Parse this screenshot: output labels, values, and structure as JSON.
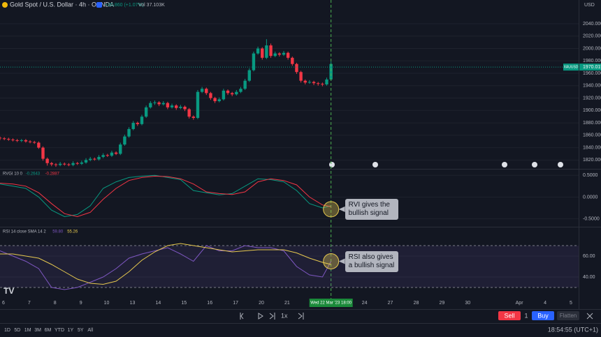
{
  "header": {
    "symbol": "Gold Spot / U.S. Dollar · 4h · OANDA",
    "change": "+20.860 (+1.07%)",
    "volume": "Vol 37.103K",
    "currency": "USD"
  },
  "chart_data": [
    {
      "type": "candlestick",
      "ticker": "XAUUSD",
      "last_price": 1970.015,
      "up_color": "#089981",
      "down_color": "#f23645",
      "open": [
        1856,
        1855,
        1854,
        1853,
        1852,
        1851,
        1852,
        1850,
        1849,
        1848,
        1840,
        1822,
        1815,
        1813,
        1812,
        1814,
        1813,
        1812,
        1815,
        1814,
        1816,
        1820,
        1822,
        1821,
        1825,
        1828,
        1827,
        1832,
        1830,
        1845,
        1858,
        1870,
        1880,
        1878,
        1890,
        1905,
        1912,
        1913,
        1910,
        1912,
        1905,
        1908,
        1904,
        1906,
        1902,
        1890,
        1888,
        1930,
        1935,
        1928,
        1920,
        1915,
        1918,
        1932,
        1928,
        1926,
        1930,
        1935,
        1948,
        1965,
        1992,
        2000,
        1985,
        2005,
        1988,
        1992,
        1990,
        1993,
        1985,
        1975,
        1962,
        1948,
        1945,
        1946,
        1944,
        1943,
        1942,
        1950
      ],
      "high": [
        1858,
        1857,
        1856,
        1855,
        1854,
        1854,
        1854,
        1852,
        1851,
        1850,
        1842,
        1824,
        1817,
        1815,
        1817,
        1816,
        1815,
        1818,
        1817,
        1819,
        1823,
        1825,
        1824,
        1828,
        1831,
        1830,
        1835,
        1834,
        1848,
        1861,
        1873,
        1883,
        1882,
        1893,
        1908,
        1915,
        1916,
        1915,
        1915,
        1914,
        1911,
        1910,
        1909,
        1908,
        1904,
        1892,
        1933,
        1938,
        1937,
        1930,
        1922,
        1921,
        1935,
        1934,
        1930,
        1933,
        1938,
        1951,
        1968,
        1995,
        2003,
        2002,
        2015,
        2008,
        1995,
        1994,
        1996,
        1995,
        1987,
        1977,
        1964,
        1950,
        1949,
        1948,
        1946,
        1945,
        1953,
        1979
      ],
      "low": [
        1852,
        1852,
        1851,
        1850,
        1849,
        1849,
        1848,
        1847,
        1846,
        1838,
        1819,
        1811,
        1810,
        1809,
        1810,
        1811,
        1810,
        1810,
        1812,
        1812,
        1814,
        1818,
        1819,
        1819,
        1823,
        1825,
        1825,
        1828,
        1828,
        1843,
        1856,
        1868,
        1875,
        1876,
        1888,
        1903,
        1909,
        1907,
        1908,
        1902,
        1903,
        1901,
        1902,
        1899,
        1887,
        1885,
        1886,
        1928,
        1925,
        1917,
        1912,
        1913,
        1916,
        1925,
        1923,
        1924,
        1928,
        1933,
        1946,
        1963,
        1990,
        1982,
        1983,
        1985,
        1986,
        1987,
        1988,
        1982,
        1972,
        1959,
        1945,
        1942,
        1943,
        1941,
        1940,
        1939,
        1940,
        1948
      ],
      "close": [
        1855,
        1854,
        1853,
        1852,
        1851,
        1852,
        1850,
        1849,
        1848,
        1840,
        1822,
        1815,
        1813,
        1812,
        1814,
        1813,
        1812,
        1815,
        1814,
        1816,
        1820,
        1822,
        1821,
        1825,
        1828,
        1827,
        1832,
        1830,
        1845,
        1858,
        1870,
        1880,
        1878,
        1890,
        1905,
        1912,
        1913,
        1910,
        1912,
        1905,
        1908,
        1904,
        1906,
        1902,
        1890,
        1888,
        1930,
        1935,
        1928,
        1920,
        1915,
        1918,
        1932,
        1928,
        1926,
        1930,
        1935,
        1948,
        1965,
        1992,
        2000,
        1985,
        2005,
        1988,
        1992,
        1990,
        1993,
        1985,
        1975,
        1962,
        1948,
        1945,
        1946,
        1944,
        1943,
        1942,
        1950,
        1975
      ],
      "xlim": [
        0,
        134.6
      ],
      "ylim": [
        1808,
        2058
      ],
      "yticks": [
        {
          "value": 1820,
          "label": "1820.000"
        },
        {
          "value": 1840,
          "label": "1840.000"
        },
        {
          "value": 1860,
          "label": "1860.000"
        },
        {
          "value": 1880,
          "label": "1880.000"
        },
        {
          "value": 1900,
          "label": "1900.000"
        },
        {
          "value": 1920,
          "label": "1920.000"
        },
        {
          "value": 1940,
          "label": "1940.000"
        },
        {
          "value": 1960,
          "label": "1960.000"
        },
        {
          "value": 1980,
          "label": "1980.000"
        },
        {
          "value": 2000,
          "label": "2000.000"
        },
        {
          "value": 2020,
          "label": "2020.000"
        },
        {
          "value": 2040,
          "label": "2040.000"
        }
      ],
      "xticks": [
        {
          "value": 0.8,
          "label": "6"
        },
        {
          "value": 6.8,
          "label": "7"
        },
        {
          "value": 12.8,
          "label": "8"
        },
        {
          "value": 18.8,
          "label": "9"
        },
        {
          "value": 24.8,
          "label": "10"
        },
        {
          "value": 30.8,
          "label": "13"
        },
        {
          "value": 36.8,
          "label": "14"
        },
        {
          "value": 42.8,
          "label": "15"
        },
        {
          "value": 48.8,
          "label": "16"
        },
        {
          "value": 54.8,
          "label": "17"
        },
        {
          "value": 60.8,
          "label": "20"
        },
        {
          "value": 66.8,
          "label": "21"
        },
        {
          "value": 84.8,
          "label": "24"
        },
        {
          "value": 90.8,
          "label": "27"
        },
        {
          "value": 96.8,
          "label": "28"
        },
        {
          "value": 102.8,
          "label": "29"
        },
        {
          "value": 108.8,
          "label": "30"
        },
        {
          "value": 120.8,
          "label": "Apr"
        },
        {
          "value": 126.8,
          "label": "4"
        },
        {
          "value": 132.8,
          "label": "5"
        }
      ],
      "crosshair": {
        "value": 77,
        "label": "Wed 22 Mar '23  18:00"
      }
    },
    {
      "type": "line",
      "title": "RVGI 10 0",
      "legend": [
        "-0.2643",
        "-0.2887"
      ],
      "x": [
        0,
        3,
        6,
        9,
        12,
        15,
        18,
        21,
        24,
        27,
        30,
        33,
        36,
        39,
        42,
        45,
        48,
        51,
        54,
        57,
        60,
        63,
        66,
        69,
        72,
        75,
        77
      ],
      "series": [
        {
          "color": "#089981",
          "values": [
            0.3,
            0.25,
            0.2,
            0.0,
            -0.3,
            -0.45,
            -0.4,
            -0.2,
            0.2,
            0.35,
            0.45,
            0.48,
            0.5,
            0.45,
            0.4,
            0.15,
            0.1,
            0.05,
            0.08,
            0.25,
            0.42,
            0.4,
            0.35,
            0.15,
            -0.15,
            -0.25,
            -0.2
          ]
        },
        {
          "color": "#f23645",
          "values": [
            0.32,
            0.3,
            0.25,
            0.1,
            -0.15,
            -0.38,
            -0.45,
            -0.35,
            -0.05,
            0.2,
            0.38,
            0.45,
            0.48,
            0.47,
            0.42,
            0.3,
            0.12,
            0.08,
            0.06,
            0.12,
            0.35,
            0.42,
            0.38,
            0.28,
            0.0,
            -0.18,
            -0.22
          ]
        }
      ],
      "xlim": [
        0,
        134.6
      ],
      "ylim": [
        -0.65,
        0.6
      ],
      "yticks": [
        {
          "value": 0.5,
          "label": "0.5000"
        },
        {
          "value": 0,
          "label": "0.0000"
        },
        {
          "value": -0.5,
          "label": "-0.5000"
        }
      ],
      "annotation": "RVI gives the bullish signal",
      "annotation_value": -0.28
    },
    {
      "type": "line",
      "title": "RSI 14 close SMA 14 2",
      "legend": [
        "59.80",
        "55.26"
      ],
      "x": [
        0,
        3,
        6,
        9,
        12,
        15,
        18,
        21,
        24,
        27,
        30,
        33,
        36,
        39,
        42,
        45,
        48,
        51,
        54,
        57,
        60,
        63,
        66,
        69,
        72,
        75,
        77
      ],
      "series": [
        {
          "color": "#7e57c2",
          "values": [
            65,
            60,
            55,
            48,
            30,
            28,
            30,
            35,
            40,
            48,
            58,
            62,
            65,
            68,
            62,
            55,
            70,
            65,
            65,
            70,
            68,
            68,
            65,
            50,
            42,
            40,
            55
          ]
        },
        {
          "color": "#e6c84f",
          "values": [
            62,
            62,
            60,
            58,
            52,
            45,
            38,
            34,
            33,
            36,
            45,
            56,
            64,
            70,
            72,
            70,
            68,
            66,
            64,
            65,
            66,
            66,
            66,
            63,
            58,
            54,
            52
          ]
        }
      ],
      "band": [
        30,
        70
      ],
      "xlim": [
        0,
        134.6
      ],
      "ylim": [
        22,
        86
      ],
      "yticks": [
        {
          "value": 40,
          "label": "40.00"
        },
        {
          "value": 60,
          "label": "60.00"
        }
      ],
      "annotation": "RSI also gives a bullish signal",
      "annotation_value": 55
    }
  ],
  "toolbar": {
    "ranges": [
      "1D",
      "5D",
      "1M",
      "3M",
      "6M",
      "YTD",
      "1Y",
      "5Y",
      "All"
    ],
    "speed": "1x",
    "sell": "Sell",
    "quantity": "1",
    "buy": "Buy",
    "flatten": "Flatten",
    "clock": "18:54:55 (UTC+1)"
  }
}
